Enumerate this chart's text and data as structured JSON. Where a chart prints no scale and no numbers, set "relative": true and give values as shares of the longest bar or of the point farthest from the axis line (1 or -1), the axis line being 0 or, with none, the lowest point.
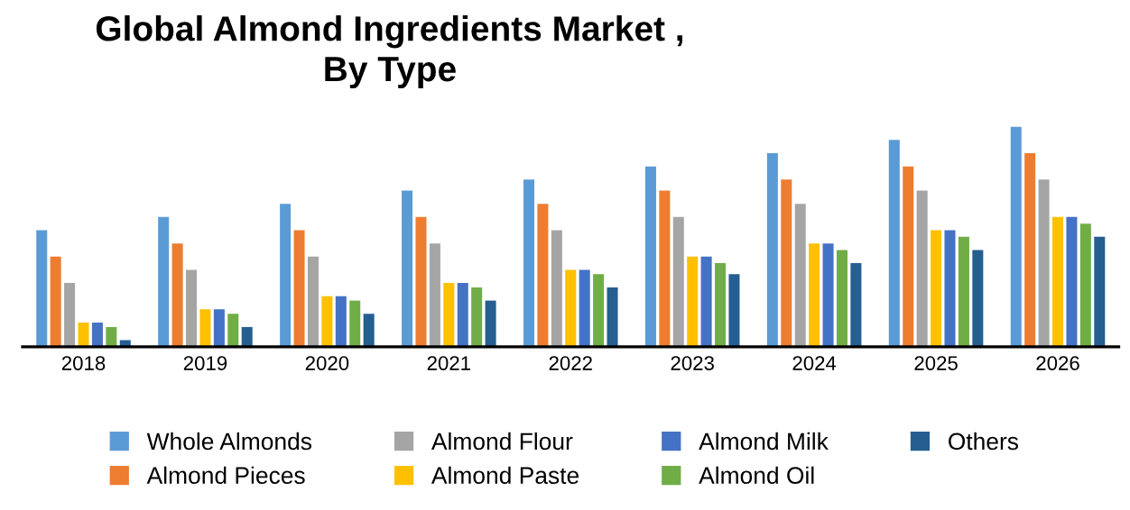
{
  "chart_data": {
    "type": "bar",
    "title": "Global Almond Ingredients Market ,\nBy Type",
    "relative": true,
    "legend": "bottom",
    "grid": false,
    "categories": [
      "2018",
      "2019",
      "2020",
      "2021",
      "2022",
      "2023",
      "2024",
      "2025",
      "2026"
    ],
    "series": [
      {
        "name": "Whole Almonds",
        "color": "#5b9bd5",
        "values": [
          0.53,
          0.59,
          0.65,
          0.71,
          0.76,
          0.82,
          0.88,
          0.94,
          1
        ]
      },
      {
        "name": "Almond Pieces",
        "color": "#ed7d31",
        "values": [
          0.41,
          0.47,
          0.53,
          0.59,
          0.65,
          0.71,
          0.76,
          0.82,
          0.88
        ]
      },
      {
        "name": "Almond Flour",
        "color": "#a5a5a5",
        "values": [
          0.29,
          0.35,
          0.41,
          0.47,
          0.53,
          0.59,
          0.65,
          0.71,
          0.76
        ]
      },
      {
        "name": "Almond Paste",
        "color": "#ffc000",
        "values": [
          0.11,
          0.17,
          0.23,
          0.29,
          0.35,
          0.41,
          0.47,
          0.53,
          0.59
        ]
      },
      {
        "name": "Almond Milk",
        "color": "#4472c4",
        "values": [
          0.11,
          0.17,
          0.23,
          0.29,
          0.35,
          0.41,
          0.47,
          0.53,
          0.59
        ]
      },
      {
        "name": "Almond Oil",
        "color": "#70ad47",
        "values": [
          0.09,
          0.15,
          0.21,
          0.27,
          0.33,
          0.38,
          0.44,
          0.5,
          0.56
        ]
      },
      {
        "name": "Others",
        "color": "#255e91",
        "values": [
          0.03,
          0.09,
          0.15,
          0.21,
          0.27,
          0.33,
          0.38,
          0.44,
          0.5
        ]
      }
    ]
  }
}
